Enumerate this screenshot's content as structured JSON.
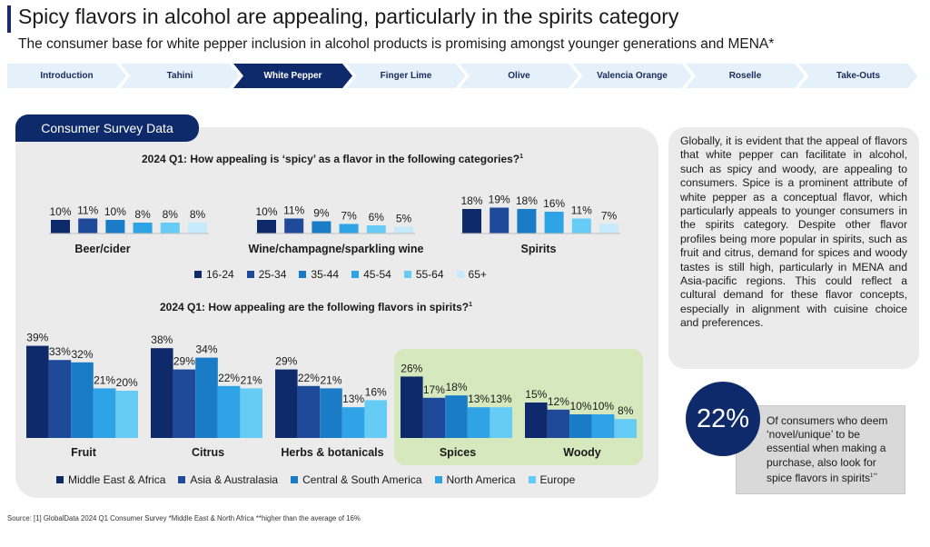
{
  "header": {
    "title": "Spicy flavors in alcohol are appealing, particularly in the spirits category",
    "subtitle": "The consumer base for white pepper inclusion in alcohol products is promising amongst younger generations and MENA*"
  },
  "nav": {
    "tabs": [
      {
        "label": "Introduction",
        "active": false
      },
      {
        "label": "Tahini",
        "active": false
      },
      {
        "label": "White Pepper",
        "active": true
      },
      {
        "label": "Finger Lime",
        "active": false
      },
      {
        "label": "Olive",
        "active": false
      },
      {
        "label": "Valencia Orange",
        "active": false
      },
      {
        "label": "Roselle",
        "active": false
      },
      {
        "label": "Take-Outs",
        "active": false
      }
    ]
  },
  "survey": {
    "tab_label": "Consumer Survey Data",
    "q1_title": "2024 Q1: How appealing is ‘spicy’ as a flavor in the following categories?",
    "q1_sup": "1",
    "q2_title": "2024 Q1: How appealing are the following flavors in spirits?",
    "q2_sup": "1"
  },
  "colors": {
    "c1": "#0f2a6b",
    "c2": "#1f4a9a",
    "c3": "#1a7cc6",
    "c4": "#2ea3e6",
    "c5": "#66ccf5",
    "c6": "#c6e9fb",
    "accent": "#0f2a6b",
    "green_panel": "#d6e8bd"
  },
  "chart_data": [
    {
      "type": "bar",
      "title": "2024 Q1: How appealing is ‘spicy’ as a flavor in the following categories?",
      "categories": [
        "Beer/cider",
        "Wine/champagne/sparkling wine",
        "Spirits"
      ],
      "series": [
        {
          "name": "16-24",
          "values": [
            10,
            10,
            18
          ]
        },
        {
          "name": "25-34",
          "values": [
            11,
            11,
            19
          ]
        },
        {
          "name": "35-44",
          "values": [
            10,
            9,
            18
          ]
        },
        {
          "name": "45-54",
          "values": [
            8,
            7,
            16
          ]
        },
        {
          "name": "55-64",
          "values": [
            8,
            6,
            11
          ]
        },
        {
          "name": "65+",
          "values": [
            8,
            5,
            7
          ]
        }
      ],
      "unit": "%",
      "ylim": [
        0,
        25
      ]
    },
    {
      "type": "bar",
      "title": "2024 Q1: How appealing are the following flavors in spirits?",
      "categories": [
        "Fruit",
        "Citrus",
        "Herbs & botanicals",
        "Spices",
        "Woody"
      ],
      "highlight": [
        "Spices",
        "Woody"
      ],
      "series": [
        {
          "name": "Middle East & Africa",
          "values": [
            39,
            38,
            29,
            26,
            15
          ]
        },
        {
          "name": "Asia & Australasia",
          "values": [
            33,
            29,
            22,
            17,
            12
          ]
        },
        {
          "name": "Central & South America",
          "values": [
            32,
            34,
            21,
            18,
            10
          ]
        },
        {
          "name": "North America",
          "values": [
            21,
            22,
            13,
            13,
            10
          ]
        },
        {
          "name": "Europe",
          "values": [
            20,
            21,
            16,
            13,
            8
          ]
        }
      ],
      "unit": "%",
      "ylim": [
        0,
        40
      ]
    }
  ],
  "insight": {
    "text": "Globally, it is evident that the appeal of flavors that white pepper can facilitate in alcohol, such as spicy and woody, are appealing to consumers. Spice is a prominent attribute of white pepper as a conceptual flavor, which particularly appeals to younger consumers in the spirits category. Despite other flavor profiles being more popular in spirits, such as fruit and citrus, demand for spices and woody tastes is still high, particularly in MENA and Asia-pacific regions. This could reflect a cultural demand for these flavor concepts, especially in alignment with cuisine choice and preferences."
  },
  "stat": {
    "value": "22%",
    "text": "Of consumers who deem ‘novel/unique’ to be essential when making a purchase, also look for spice flavors in spirits",
    "sup": "1**"
  },
  "footer": {
    "source": "Source: [1] GlobalData 2024 Q1 Consumer Survey  *Middle East & North Africa **higher than the average of 16%"
  }
}
